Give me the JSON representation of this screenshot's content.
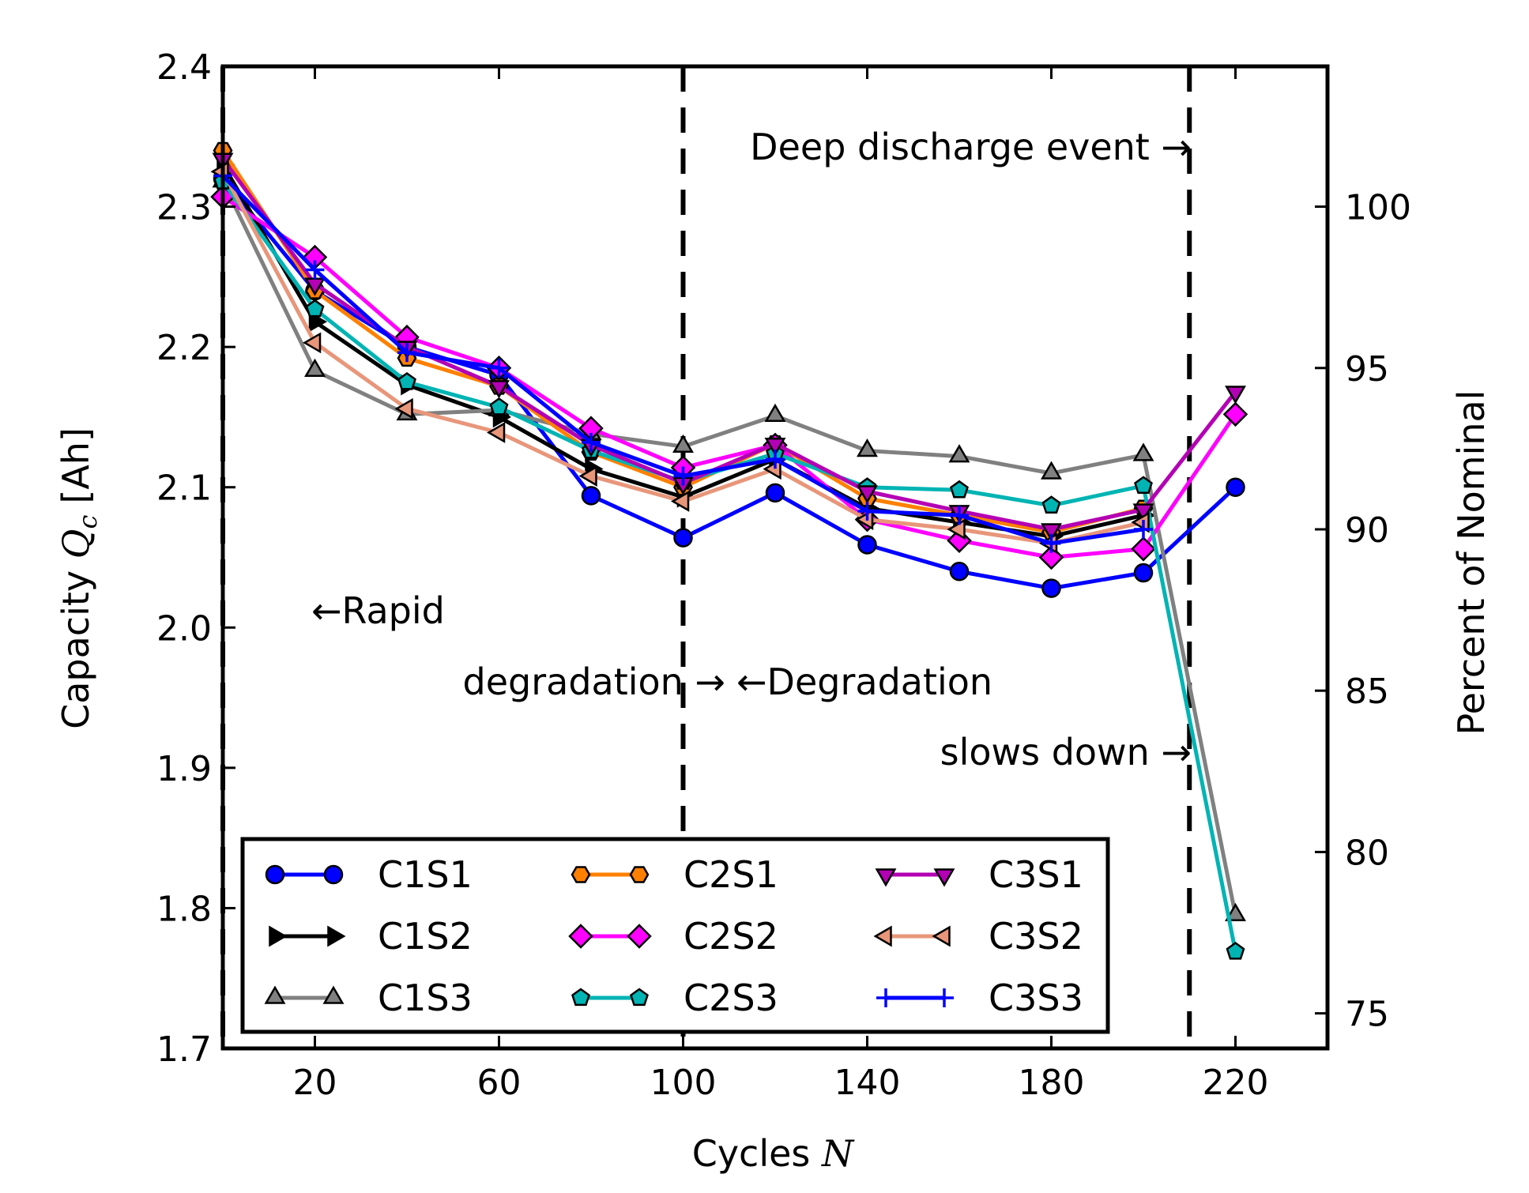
{
  "chart_data": {
    "type": "line",
    "xlabel": "Cycles",
    "xlabel_var": "N",
    "ylabel": "Capacity",
    "ylabel_var": "Q",
    "ylabel_sub": "c",
    "ylabel_unit": "[Ah]",
    "y2label": "Percent of Nominal",
    "xlim": [
      0,
      240
    ],
    "ylim": [
      1.7,
      2.4
    ],
    "x_ticks": [
      20,
      60,
      100,
      140,
      180,
      220
    ],
    "y_ticks": [
      1.7,
      1.8,
      1.9,
      2.0,
      2.1,
      2.2,
      2.3,
      2.4
    ],
    "y_tick_labels": [
      "1.7",
      "1.8",
      "1.9",
      "2.0",
      "2.1",
      "2.2",
      "2.3",
      "2.4"
    ],
    "y2_ticks": [
      75,
      80,
      85,
      90,
      95,
      100
    ],
    "nominal_capacity": 2.3,
    "grid": false,
    "legend_position": "bottom-left",
    "vlines": [
      0,
      100,
      210
    ],
    "annotations": {
      "deep_discharge": "Deep discharge event →",
      "rapid": "←Rapid",
      "degradation_left": "degradation →",
      "degradation_right": "←Degradation",
      "slows_down": "slows down →"
    },
    "series": [
      {
        "name": "C1S1",
        "color": "#0000ff",
        "marker": "circle",
        "x": [
          0,
          20,
          40,
          60,
          80,
          100,
          120,
          140,
          160,
          180,
          200,
          220
        ],
        "values": [
          2.32,
          2.24,
          2.2,
          2.18,
          2.094,
          2.064,
          2.096,
          2.059,
          2.04,
          2.028,
          2.039,
          2.1
        ]
      },
      {
        "name": "C1S2",
        "color": "#000000",
        "marker": "triangle-right",
        "x": [
          0,
          20,
          40,
          60,
          80,
          100,
          120,
          140,
          160,
          180,
          200
        ],
        "values": [
          2.33,
          2.218,
          2.173,
          2.15,
          2.113,
          2.093,
          2.12,
          2.085,
          2.075,
          2.065,
          2.08
        ]
      },
      {
        "name": "C1S3",
        "color": "#808080",
        "marker": "triangle-up",
        "x": [
          0,
          20,
          40,
          60,
          80,
          100,
          120,
          140,
          160,
          180,
          200,
          220
        ],
        "values": [
          2.318,
          2.183,
          2.152,
          2.155,
          2.138,
          2.129,
          2.151,
          2.126,
          2.122,
          2.11,
          2.123,
          1.795
        ]
      },
      {
        "name": "C2S1",
        "color": "#ff8000",
        "marker": "hexagon",
        "x": [
          0,
          20,
          40,
          60,
          80,
          100,
          120,
          140,
          160,
          180,
          200
        ],
        "values": [
          2.34,
          2.24,
          2.192,
          2.172,
          2.125,
          2.1,
          2.131,
          2.092,
          2.08,
          2.068,
          2.085
        ]
      },
      {
        "name": "C2S2",
        "color": "#ff00ff",
        "marker": "diamond",
        "x": [
          0,
          20,
          40,
          60,
          80,
          100,
          120,
          140,
          160,
          180,
          200,
          220
        ],
        "values": [
          2.307,
          2.264,
          2.207,
          2.185,
          2.142,
          2.114,
          2.13,
          2.077,
          2.062,
          2.05,
          2.056,
          2.152
        ]
      },
      {
        "name": "C2S3",
        "color": "#00b4b4",
        "marker": "pentagon",
        "x": [
          0,
          20,
          40,
          60,
          80,
          100,
          120,
          140,
          160,
          180,
          200,
          220
        ],
        "values": [
          2.318,
          2.227,
          2.175,
          2.157,
          2.126,
          2.104,
          2.124,
          2.1,
          2.098,
          2.087,
          2.101,
          1.769
        ]
      },
      {
        "name": "C3S1",
        "color": "#b400b4",
        "marker": "triangle-down",
        "x": [
          0,
          20,
          40,
          60,
          80,
          100,
          120,
          140,
          160,
          180,
          200,
          220
        ],
        "values": [
          2.334,
          2.245,
          2.2,
          2.172,
          2.13,
          2.103,
          2.131,
          2.097,
          2.083,
          2.07,
          2.084,
          2.168
        ]
      },
      {
        "name": "C3S2",
        "color": "#e8967a",
        "marker": "triangle-left",
        "x": [
          0,
          20,
          40,
          60,
          80,
          100,
          120,
          140,
          160,
          180,
          200
        ],
        "values": [
          2.325,
          2.203,
          2.156,
          2.139,
          2.108,
          2.09,
          2.113,
          2.077,
          2.07,
          2.06,
          2.075
        ]
      },
      {
        "name": "C3S3",
        "color": "#0000ff",
        "marker": "plus",
        "x": [
          0,
          20,
          40,
          60,
          80,
          100,
          120,
          140,
          160,
          180,
          200
        ],
        "values": [
          2.322,
          2.255,
          2.196,
          2.185,
          2.132,
          2.108,
          2.12,
          2.083,
          2.08,
          2.06,
          2.07
        ]
      }
    ]
  }
}
